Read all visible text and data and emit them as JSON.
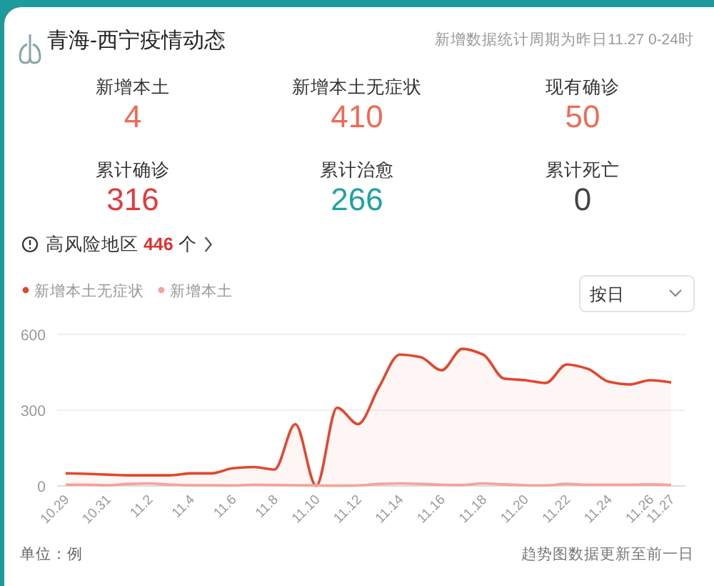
{
  "chart_data": [
    {
      "type": "other",
      "title": "青海-西宁疫情动态",
      "subtitle": "新增数据统计周期为昨日11.27 0-24时",
      "annotations": [
        "新增本土",
        "4",
        "新增本土无症状",
        "410",
        "现有确诊",
        "50",
        "累计确诊",
        "316",
        "累计治愈",
        "266",
        "累计死亡",
        "0",
        "高风险地区 **446** 个"
      ]
    },
    {
      "type": "line",
      "categories": [
        "10.29",
        null,
        "10.31",
        null,
        "11.2",
        null,
        "11.4",
        null,
        "11.6",
        null,
        "11.8",
        null,
        "11.10",
        null,
        "11.12",
        null,
        "11.14",
        null,
        "11.16",
        null,
        "11.18",
        null,
        "11.20",
        null,
        "11.22",
        null,
        "11.24",
        null,
        "11.26",
        "11.27"
      ],
      "series": [
        {
          "name": "新增本土无症状",
          "type": "area",
          "color": "#e2472f",
          "values": [
            50,
            48,
            45,
            42,
            42,
            42,
            50,
            50,
            70,
            75,
            65,
            245,
            0,
            310,
            245,
            390,
            520,
            510,
            458,
            543,
            520,
            425,
            419,
            408,
            481,
            464,
            413,
            402,
            419,
            410
          ]
        },
        {
          "name": "新增本土",
          "color": "#f5a29a",
          "values": [
            5,
            5,
            3,
            8,
            10,
            5,
            3,
            3,
            2,
            5,
            4,
            3,
            2,
            1,
            2,
            8,
            10,
            8,
            5,
            4,
            10,
            6,
            3,
            2,
            8,
            5,
            5,
            5,
            6,
            4
          ]
        }
      ],
      "ylim": [
        0,
        600
      ],
      "yticks": [
        0,
        300,
        600
      ],
      "grid": "y",
      "legend": "top left",
      "annotations": [
        "按日",
        "单位：例",
        "趋势图数据更新至前一日"
      ]
    }
  ]
}
